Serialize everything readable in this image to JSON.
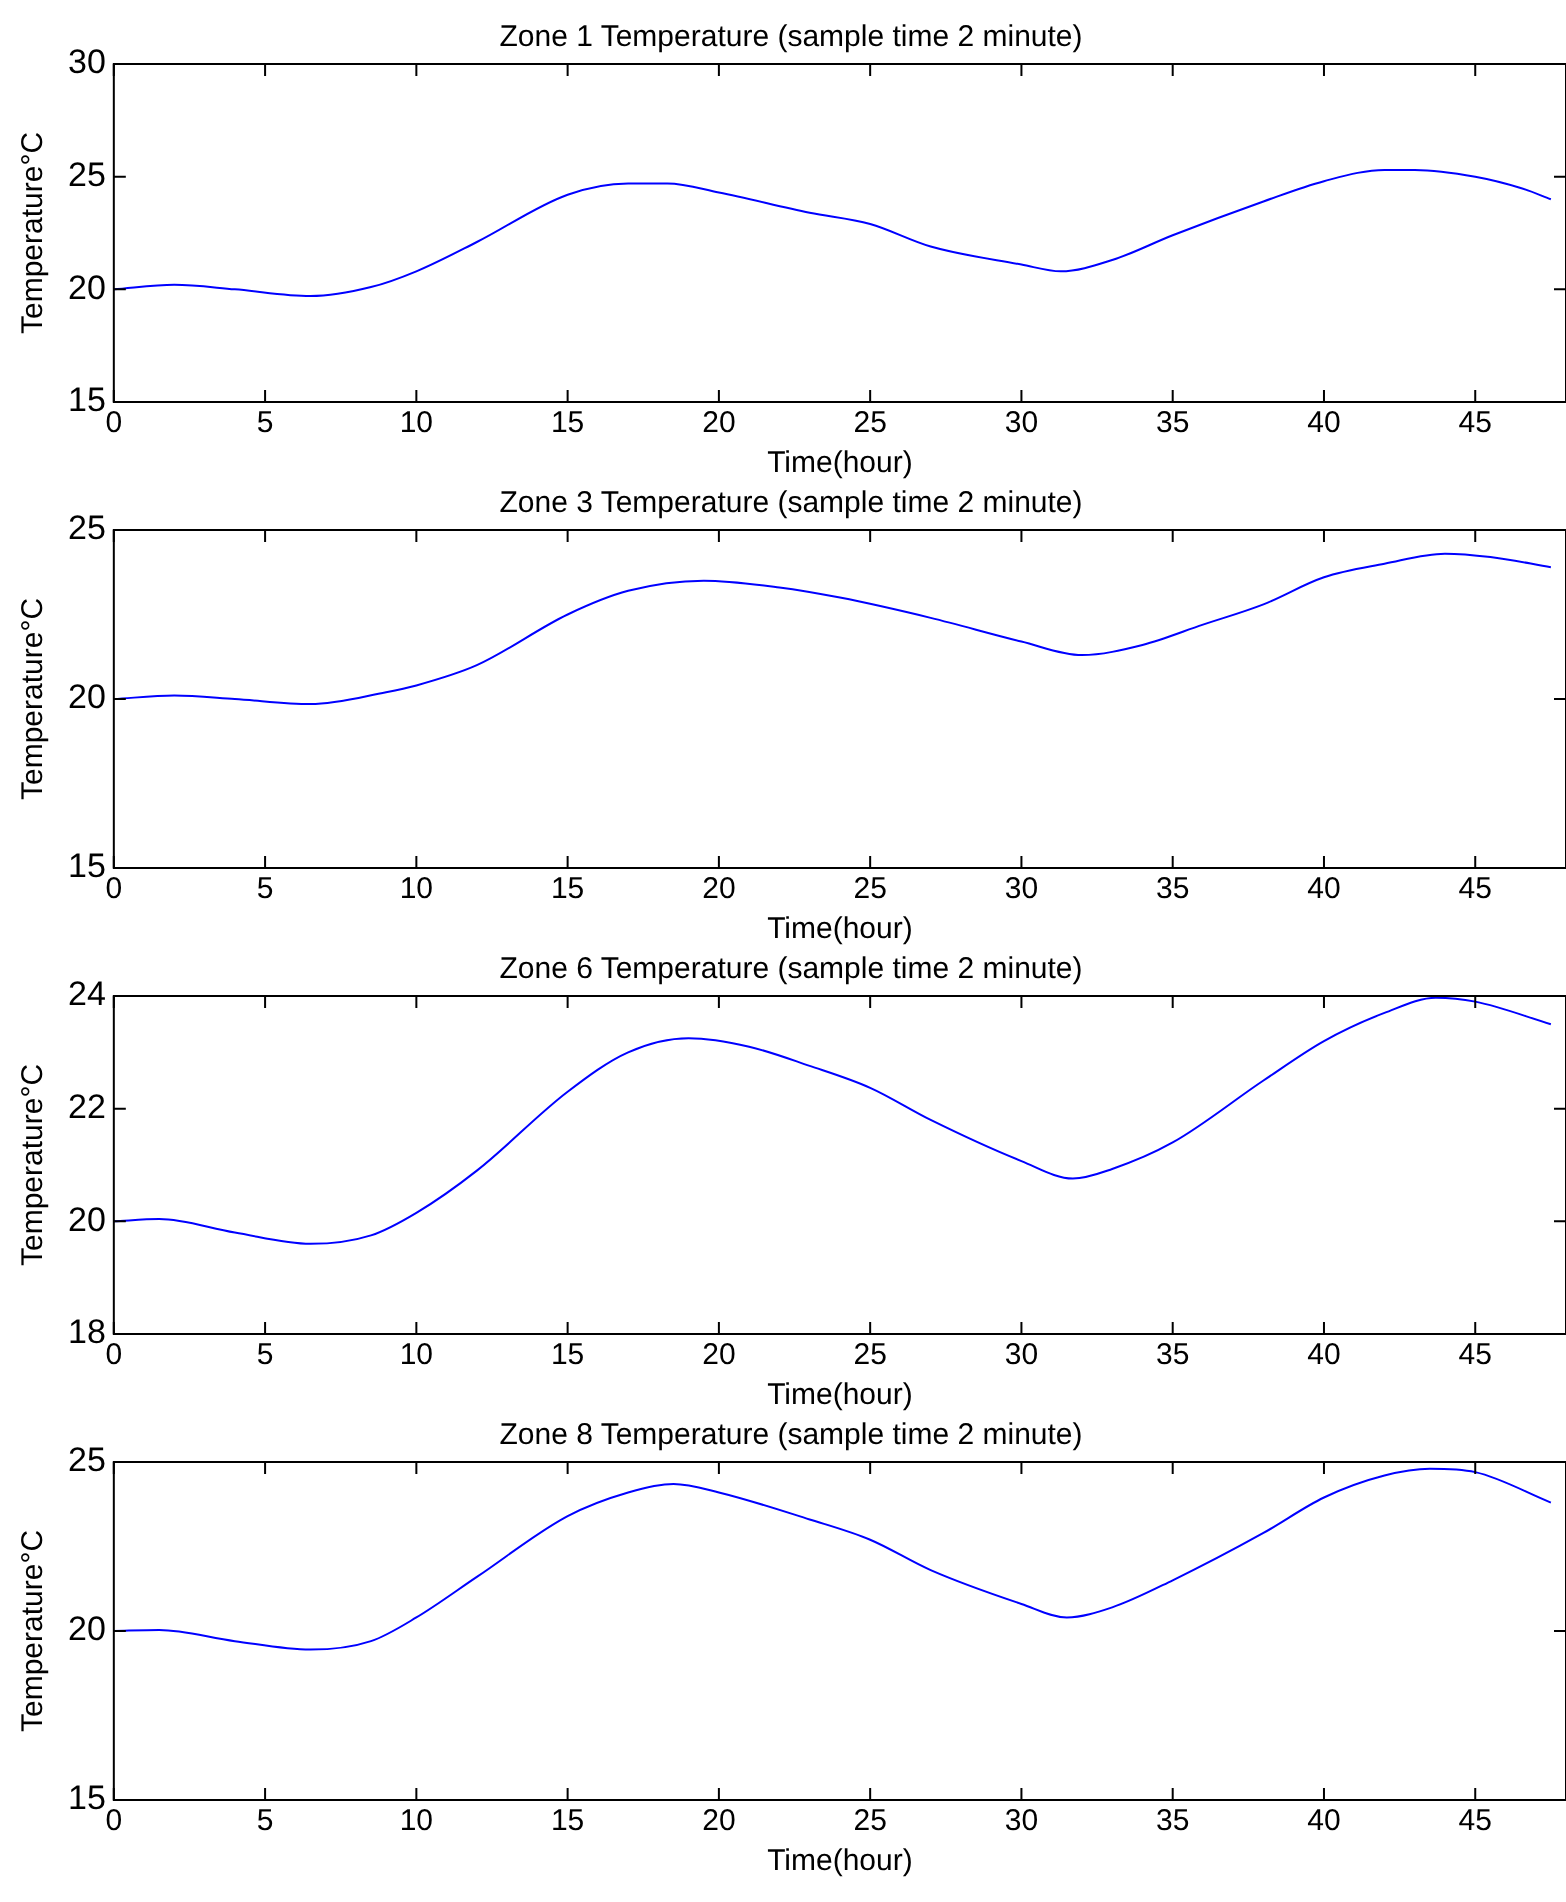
{
  "chart_data": [
    {
      "type": "line",
      "title": "Zone 1 Temperature (sample time 2 minute)",
      "xlabel": "Time(hour)",
      "ylabel": "Temperature°C",
      "xlim": [
        0,
        48
      ],
      "xticks": [
        0,
        5,
        10,
        15,
        20,
        25,
        30,
        35,
        40,
        45
      ],
      "ylim": [
        15,
        30
      ],
      "yticks": [
        15,
        20,
        25,
        30
      ],
      "grid": false,
      "legend": false,
      "marker": "none",
      "line_style": "solid",
      "series": [
        {
          "color": "#0000ff",
          "x": [
            0,
            2,
            4,
            6.5,
            8.5,
            10,
            12,
            15,
            17,
            18.3,
            20,
            23,
            25,
            27,
            30,
            31.3,
            33,
            35,
            38,
            40,
            42,
            43,
            45,
            46.5,
            47.5
          ],
          "values": [
            20.0,
            20.2,
            20.0,
            19.7,
            20.1,
            20.8,
            22.1,
            24.2,
            24.7,
            24.7,
            24.3,
            23.4,
            22.9,
            21.9,
            21.1,
            20.8,
            21.3,
            22.4,
            23.9,
            24.8,
            25.3,
            25.3,
            25.0,
            24.5,
            24.0
          ]
        }
      ]
    },
    {
      "type": "line",
      "title": "Zone 3 Temperature (sample time 2 minute)",
      "xlabel": "Time(hour)",
      "ylabel": "Temperature°C",
      "xlim": [
        0,
        48
      ],
      "xticks": [
        0,
        5,
        10,
        15,
        20,
        25,
        30,
        35,
        40,
        45
      ],
      "ylim": [
        15,
        25
      ],
      "yticks": [
        15,
        20,
        25
      ],
      "grid": false,
      "legend": false,
      "marker": "none",
      "line_style": "solid",
      "series": [
        {
          "color": "#0000ff",
          "x": [
            0,
            2,
            4,
            6.5,
            9,
            10,
            12,
            15,
            17,
            19.5,
            22,
            24,
            27,
            30,
            32,
            34,
            36,
            38,
            40,
            42,
            44,
            45.5,
            47.5
          ],
          "values": [
            20.0,
            20.1,
            20.0,
            19.85,
            20.2,
            20.4,
            21.0,
            22.5,
            23.2,
            23.5,
            23.3,
            23.0,
            22.4,
            21.7,
            21.3,
            21.6,
            22.2,
            22.8,
            23.6,
            24.0,
            24.3,
            24.2,
            23.9
          ]
        }
      ]
    },
    {
      "type": "line",
      "title": "Zone 6 Temperature (sample time 2 minute)",
      "xlabel": "Time(hour)",
      "ylabel": "Temperature°C",
      "xlim": [
        0,
        48
      ],
      "xticks": [
        0,
        5,
        10,
        15,
        20,
        25,
        30,
        35,
        40,
        45
      ],
      "ylim": [
        18,
        24
      ],
      "yticks": [
        18,
        20,
        22,
        24
      ],
      "grid": false,
      "legend": false,
      "marker": "none",
      "line_style": "solid",
      "series": [
        {
          "color": "#0000ff",
          "x": [
            0,
            1.5,
            4,
            6.5,
            8.5,
            10,
            12,
            15,
            17,
            19,
            21,
            23,
            25,
            27,
            30,
            31.7,
            33,
            35,
            38,
            40,
            42,
            43.7,
            45,
            47.5
          ],
          "values": [
            20.0,
            20.04,
            19.8,
            19.6,
            19.75,
            20.15,
            20.9,
            22.3,
            23.0,
            23.25,
            23.1,
            22.76,
            22.37,
            21.8,
            21.07,
            20.76,
            20.93,
            21.4,
            22.5,
            23.2,
            23.7,
            23.97,
            23.9,
            23.5
          ]
        }
      ]
    },
    {
      "type": "line",
      "title": "Zone 8 Temperature (sample time 2 minute)",
      "xlabel": "Time(hour)",
      "ylabel": "Temperature°C",
      "xlim": [
        0,
        48
      ],
      "xticks": [
        0,
        5,
        10,
        15,
        20,
        25,
        30,
        35,
        40,
        45
      ],
      "ylim": [
        15,
        25
      ],
      "yticks": [
        15,
        20,
        25
      ],
      "grid": false,
      "legend": false,
      "marker": "none",
      "line_style": "solid",
      "series": [
        {
          "color": "#0000ff",
          "x": [
            0,
            1.5,
            4,
            6.5,
            8.5,
            10,
            12,
            15,
            17,
            18.5,
            20,
            23,
            25,
            27,
            30,
            31.5,
            33,
            35,
            38,
            40,
            42,
            43.5,
            45,
            47.5
          ],
          "values": [
            20.0,
            20.03,
            19.7,
            19.45,
            19.7,
            20.4,
            21.6,
            23.4,
            24.1,
            24.35,
            24.1,
            23.3,
            22.7,
            21.8,
            20.8,
            20.4,
            20.7,
            21.5,
            22.9,
            23.95,
            24.6,
            24.8,
            24.7,
            23.8
          ]
        }
      ]
    }
  ]
}
